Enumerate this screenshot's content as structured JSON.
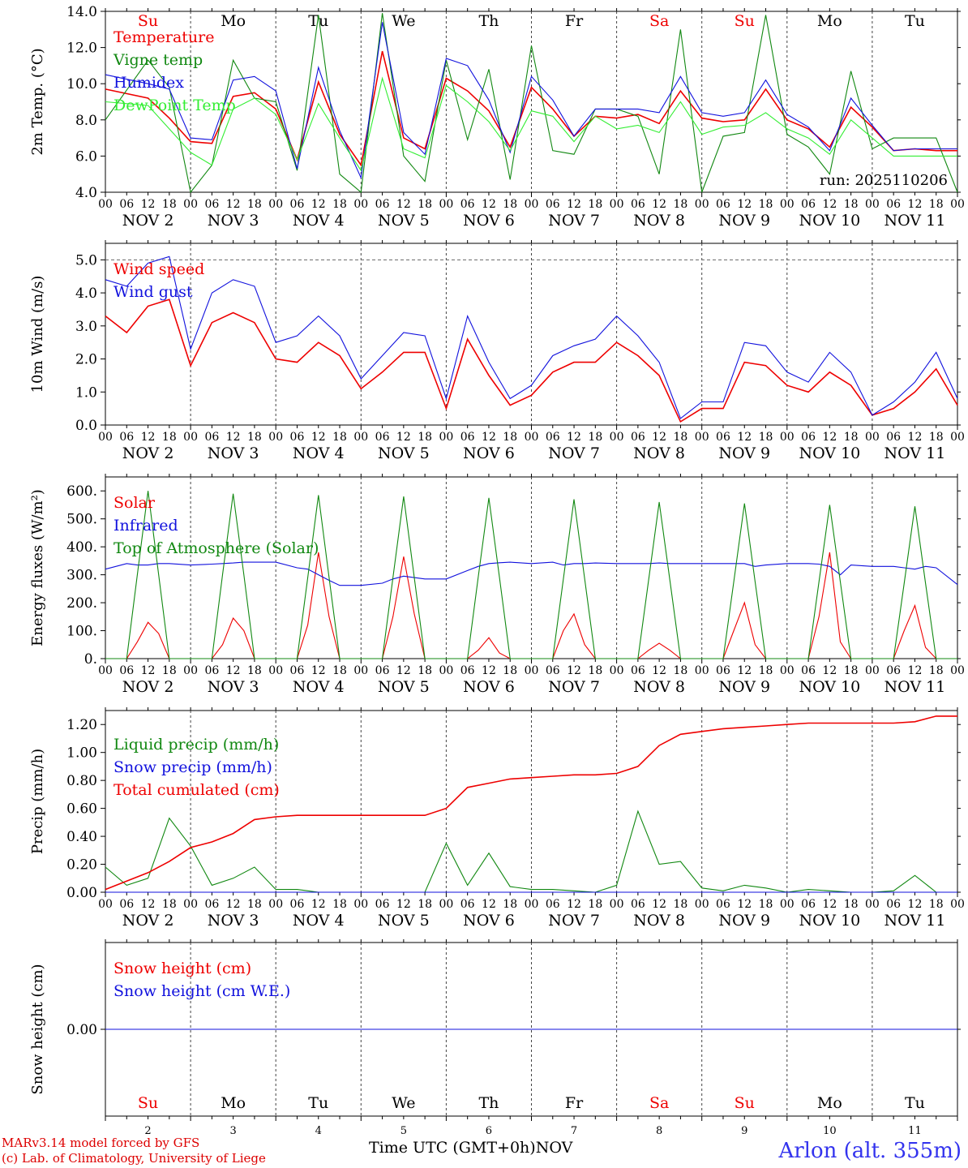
{
  "footer": {
    "model": "MARv3.14 model forced by GFS",
    "credit": "(c) Lab. of Climatology, University of Liege",
    "station": "Arlon (alt. 355m)",
    "xlabel": "Time UTC (GMT+0h)",
    "month": "NOV"
  },
  "colors": {
    "red": "#ee0000",
    "green": "#118811",
    "blue": "#1111dd",
    "lightgreen": "#33ee33"
  },
  "chart_data": [
    {
      "type": "line",
      "title": "2m Temp. (°C)",
      "ylabel": "2m Temp. (°C)",
      "ylim": [
        4.0,
        14.0
      ],
      "yticks": [
        "4.0",
        "6.0",
        "8.0",
        "10.0",
        "12.0",
        "14.0"
      ],
      "run_label": "run: 2025110206",
      "weekdays": [
        {
          "label": "Su",
          "weekend": true
        },
        {
          "label": "Mo",
          "weekend": false
        },
        {
          "label": "Tu",
          "weekend": false
        },
        {
          "label": "We",
          "weekend": false
        },
        {
          "label": "Th",
          "weekend": false
        },
        {
          "label": "Fr",
          "weekend": false
        },
        {
          "label": "Sa",
          "weekend": true
        },
        {
          "label": "Su",
          "weekend": true
        },
        {
          "label": "Mo",
          "weekend": false
        },
        {
          "label": "Tu",
          "weekend": false
        }
      ],
      "x_hours": [
        0,
        12,
        18,
        24,
        30,
        36,
        42,
        48,
        54,
        60,
        66,
        72,
        78,
        84,
        90,
        96,
        102,
        108,
        114,
        120,
        126,
        132,
        138,
        144,
        150,
        156,
        162,
        168,
        174,
        180,
        186,
        192,
        198,
        204,
        210,
        216,
        222,
        228,
        234,
        240
      ],
      "series": [
        {
          "name": "Temperature",
          "color": "red",
          "values": [
            9.7,
            9.2,
            8.1,
            6.8,
            6.7,
            9.3,
            9.5,
            8.6,
            5.8,
            10.1,
            7.2,
            5.5,
            11.8,
            7.0,
            6.4,
            10.3,
            9.6,
            8.5,
            6.5,
            9.8,
            8.6,
            7.1,
            8.2,
            8.1,
            8.3,
            7.8,
            9.6,
            8.1,
            7.9,
            8.0,
            9.7,
            8.0,
            7.5,
            6.5,
            8.7,
            7.6,
            6.3,
            6.4,
            6.3,
            6.3
          ]
        },
        {
          "name": "Vigne temp",
          "color": "green",
          "values": [
            8.0,
            11.3,
            9.8,
            4.0,
            5.5,
            11.3,
            9.2,
            9.0,
            5.2,
            13.8,
            5.0,
            4.0,
            13.9,
            6.0,
            4.6,
            11.3,
            6.9,
            10.8,
            4.7,
            12.1,
            6.3,
            6.1,
            8.6,
            8.6,
            8.2,
            5.0,
            13.0,
            4.0,
            7.1,
            7.3,
            13.8,
            7.2,
            6.5,
            5.0,
            10.7,
            6.4,
            7.0,
            7.0,
            7.0,
            4.0
          ]
        },
        {
          "name": "Humidex",
          "color": "blue",
          "values": [
            10.5,
            10.0,
            9.7,
            7.0,
            6.9,
            10.2,
            10.4,
            9.6,
            5.3,
            10.9,
            7.4,
            4.8,
            13.4,
            7.3,
            6.1,
            11.4,
            11.0,
            9.1,
            6.2,
            10.4,
            9.1,
            7.1,
            8.6,
            8.6,
            8.6,
            8.4,
            10.4,
            8.4,
            8.2,
            8.4,
            10.2,
            8.3,
            7.6,
            6.3,
            9.2,
            7.7,
            6.3,
            6.4,
            6.4,
            6.4
          ]
        },
        {
          "name": "DewPoint Temp",
          "color": "lightgreen",
          "values": [
            9.0,
            8.8,
            7.5,
            6.2,
            5.5,
            8.6,
            9.2,
            8.3,
            5.8,
            8.9,
            7.0,
            5.2,
            10.3,
            6.4,
            5.9,
            9.9,
            9.0,
            7.9,
            6.3,
            8.5,
            8.2,
            6.8,
            8.2,
            7.5,
            7.7,
            7.3,
            9.0,
            7.2,
            7.6,
            7.7,
            8.4,
            7.5,
            7.0,
            6.1,
            8.0,
            7.0,
            6.0,
            6.0,
            6.0,
            6.0
          ]
        }
      ]
    },
    {
      "type": "line",
      "ylabel": "10m Wind (m/s)",
      "ylim": [
        0.0,
        5.5
      ],
      "yticks": [
        "0.0",
        "1.0",
        "2.0",
        "3.0",
        "4.0",
        "5.0"
      ],
      "x_hours": [
        0,
        6,
        12,
        18,
        24,
        30,
        36,
        42,
        48,
        54,
        60,
        66,
        72,
        78,
        84,
        90,
        96,
        102,
        108,
        114,
        120,
        126,
        132,
        138,
        144,
        150,
        156,
        162,
        168,
        174,
        180,
        186,
        192,
        198,
        204,
        210,
        216,
        222,
        228,
        234,
        240
      ],
      "series": [
        {
          "name": "Wind speed",
          "color": "red",
          "values": [
            3.3,
            2.8,
            3.6,
            3.8,
            1.8,
            3.1,
            3.4,
            3.1,
            2.0,
            1.9,
            2.5,
            2.1,
            1.1,
            1.6,
            2.2,
            2.2,
            0.5,
            2.6,
            1.5,
            0.6,
            0.9,
            1.6,
            1.9,
            1.9,
            2.5,
            2.1,
            1.5,
            0.1,
            0.5,
            0.5,
            1.9,
            1.8,
            1.2,
            1.0,
            1.6,
            1.2,
            0.3,
            0.5,
            1.0,
            1.7,
            0.6
          ]
        },
        {
          "name": "Wind gust",
          "color": "blue",
          "values": [
            4.4,
            4.2,
            4.9,
            5.1,
            2.3,
            4.0,
            4.4,
            4.2,
            2.5,
            2.7,
            3.3,
            2.7,
            1.4,
            2.1,
            2.8,
            2.7,
            0.8,
            3.3,
            1.9,
            0.8,
            1.2,
            2.1,
            2.4,
            2.6,
            3.3,
            2.7,
            1.9,
            0.2,
            0.7,
            0.7,
            2.5,
            2.4,
            1.6,
            1.3,
            2.2,
            1.6,
            0.3,
            0.7,
            1.3,
            2.2,
            0.8
          ]
        }
      ]
    },
    {
      "type": "line",
      "ylabel": "Energy fluxes (W/m²)",
      "ylim": [
        0,
        650
      ],
      "yticks": [
        "0.",
        "100.",
        "200.",
        "300.",
        "400.",
        "500.",
        "600."
      ],
      "x_hours": [
        0,
        6,
        9,
        12,
        15,
        18,
        24,
        30,
        33,
        36,
        39,
        42,
        48,
        54,
        57,
        60,
        63,
        66,
        72,
        78,
        81,
        84,
        87,
        90,
        96,
        102,
        105,
        108,
        111,
        114,
        120,
        126,
        129,
        132,
        135,
        138,
        144,
        150,
        153,
        156,
        159,
        162,
        168,
        174,
        177,
        180,
        183,
        186,
        192,
        198,
        201,
        204,
        207,
        210,
        216,
        222,
        225,
        228,
        231,
        234,
        240
      ],
      "series": [
        {
          "name": "Solar",
          "color": "red",
          "values": [
            0,
            0,
            60,
            130,
            90,
            0,
            0,
            0,
            50,
            145,
            100,
            0,
            0,
            0,
            120,
            380,
            150,
            0,
            0,
            0,
            150,
            365,
            160,
            0,
            0,
            0,
            30,
            75,
            20,
            0,
            0,
            0,
            100,
            160,
            50,
            0,
            0,
            0,
            30,
            55,
            30,
            0,
            0,
            0,
            100,
            200,
            50,
            0,
            0,
            0,
            150,
            380,
            60,
            0,
            0,
            0,
            100,
            190,
            40,
            0,
            0
          ]
        },
        {
          "name": "Infrared",
          "color": "blue",
          "values": [
            320,
            340,
            335,
            335,
            340,
            340,
            335,
            338,
            340,
            342,
            345,
            345,
            345,
            325,
            320,
            300,
            280,
            262,
            262,
            270,
            285,
            295,
            290,
            285,
            285,
            315,
            330,
            340,
            343,
            345,
            340,
            345,
            335,
            340,
            340,
            342,
            340,
            340,
            340,
            342,
            340,
            340,
            340,
            340,
            340,
            340,
            330,
            335,
            340,
            340,
            338,
            330,
            300,
            335,
            330,
            330,
            325,
            320,
            330,
            325,
            265
          ]
        },
        {
          "name": "Top of Atmosphere (Solar)",
          "color": "green",
          "values": [
            0,
            0,
            300,
            600,
            300,
            0,
            0,
            0,
            300,
            590,
            300,
            0,
            0,
            0,
            290,
            585,
            290,
            0,
            0,
            0,
            290,
            580,
            290,
            0,
            0,
            0,
            290,
            575,
            290,
            0,
            0,
            0,
            285,
            570,
            285,
            0,
            0,
            0,
            280,
            560,
            280,
            0,
            0,
            0,
            275,
            555,
            275,
            0,
            0,
            0,
            275,
            550,
            275,
            0,
            0,
            0,
            270,
            545,
            270,
            0,
            0
          ]
        }
      ]
    },
    {
      "type": "line",
      "ylabel": "Precip (mm/h)",
      "ylim": [
        0,
        1.3
      ],
      "yticks": [
        "0.00",
        "0.20",
        "0.40",
        "0.60",
        "0.80",
        "1.00",
        "1.20"
      ],
      "x_hours": [
        0,
        6,
        12,
        18,
        24,
        30,
        36,
        42,
        48,
        54,
        60,
        66,
        72,
        78,
        84,
        90,
        96,
        102,
        108,
        114,
        120,
        126,
        132,
        138,
        144,
        150,
        156,
        162,
        168,
        174,
        180,
        186,
        192,
        198,
        204,
        210,
        216,
        222,
        228,
        234,
        240
      ],
      "series": [
        {
          "name": "Liquid precip (mm/h)",
          "color": "green",
          "values": [
            0.18,
            0.05,
            0.1,
            0.53,
            0.33,
            0.05,
            0.1,
            0.18,
            0.02,
            0.02,
            0.0,
            0.0,
            0.0,
            0.0,
            0.0,
            0.0,
            0.35,
            0.05,
            0.28,
            0.04,
            0.02,
            0.02,
            0.01,
            0.0,
            0.05,
            0.58,
            0.2,
            0.22,
            0.03,
            0.01,
            0.05,
            0.03,
            0.0,
            0.02,
            0.01,
            0.0,
            0.0,
            0.01,
            0.12,
            0.0,
            0.0
          ]
        },
        {
          "name": "Snow precip (mm/h)",
          "color": "blue",
          "values": [
            0,
            0,
            0,
            0,
            0,
            0,
            0,
            0,
            0,
            0,
            0,
            0,
            0,
            0,
            0,
            0,
            0,
            0,
            0,
            0,
            0,
            0,
            0,
            0,
            0,
            0,
            0,
            0,
            0,
            0,
            0,
            0,
            0,
            0,
            0,
            0,
            0,
            0,
            0,
            0,
            0
          ]
        },
        {
          "name": "Total cumulated (cm)",
          "color": "red",
          "values": [
            0.02,
            0.08,
            0.14,
            0.22,
            0.32,
            0.36,
            0.42,
            0.52,
            0.54,
            0.55,
            0.55,
            0.55,
            0.55,
            0.55,
            0.55,
            0.55,
            0.6,
            0.75,
            0.78,
            0.81,
            0.82,
            0.83,
            0.84,
            0.84,
            0.85,
            0.9,
            1.05,
            1.13,
            1.15,
            1.17,
            1.18,
            1.19,
            1.2,
            1.21,
            1.21,
            1.21,
            1.21,
            1.21,
            1.22,
            1.26,
            1.26
          ]
        }
      ]
    },
    {
      "type": "line",
      "ylabel": "Snow height (cm)",
      "ylim": [
        -1,
        1
      ],
      "yticks": [
        "0.00"
      ],
      "weekdays_bottom": [
        {
          "label": "Su",
          "weekend": true
        },
        {
          "label": "Mo",
          "weekend": false
        },
        {
          "label": "Tu",
          "weekend": false
        },
        {
          "label": "We",
          "weekend": false
        },
        {
          "label": "Th",
          "weekend": false
        },
        {
          "label": "Fr",
          "weekend": false
        },
        {
          "label": "Sa",
          "weekend": true
        },
        {
          "label": "Su",
          "weekend": true
        },
        {
          "label": "Mo",
          "weekend": false
        },
        {
          "label": "Tu",
          "weekend": false
        }
      ],
      "day_numbers": [
        "2",
        "3",
        "4",
        "5",
        "6",
        "7",
        "8",
        "9",
        "10",
        "11"
      ],
      "x_hours": [
        0,
        240
      ],
      "series": [
        {
          "name": "Snow height (cm)",
          "color": "red",
          "values": [
            0,
            0
          ]
        },
        {
          "name": "Snow height (cm W.E.)",
          "color": "blue",
          "values": [
            0,
            0
          ]
        }
      ]
    }
  ],
  "xaxis": {
    "hour_ticks": [
      "00",
      "06",
      "12",
      "18"
    ],
    "end_tick": "00",
    "date_labels": [
      "NOV  2",
      "NOV  3",
      "NOV  4",
      "NOV  5",
      "NOV  6",
      "NOV  7",
      "NOV  8",
      "NOV  9",
      "NOV 10",
      "NOV 11"
    ]
  }
}
